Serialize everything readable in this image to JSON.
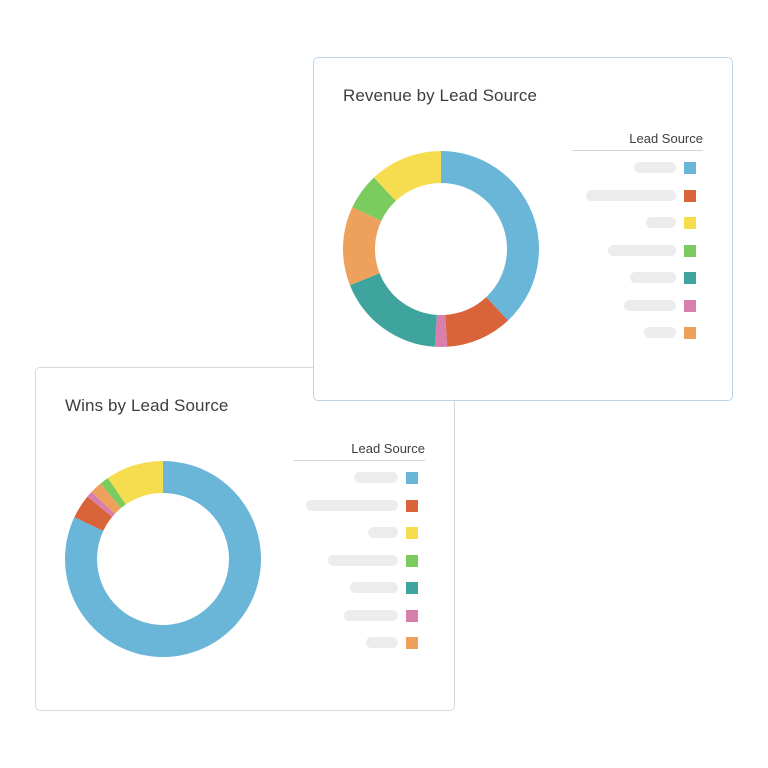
{
  "colors": {
    "blue": "#6ab6d9",
    "orange_red": "#d9643a",
    "yellow": "#f6dc4f",
    "green": "#7ccb5f",
    "teal": "#3fa49d",
    "pink": "#d97fae",
    "light_orange": "#eea15c"
  },
  "chart_data": [
    {
      "type": "pie",
      "title": "Revenue by Lead Source",
      "legend": {
        "title": "Lead Source",
        "placement": "right"
      },
      "series": [
        {
          "color": "#6ab6d9",
          "value": 38
        },
        {
          "color": "#d9643a",
          "value": 11
        },
        {
          "color": "#d97fae",
          "value": 2
        },
        {
          "color": "#3fa49d",
          "value": 18
        },
        {
          "color": "#eea15c",
          "value": 13
        },
        {
          "color": "#7ccb5f",
          "value": 6
        },
        {
          "color": "#f6dc4f",
          "value": 12
        }
      ],
      "legend_swatches": [
        "#6ab6d9",
        "#d9643a",
        "#f6dc4f",
        "#7ccb5f",
        "#3fa49d",
        "#d97fae",
        "#eea15c"
      ]
    },
    {
      "type": "pie",
      "title": "Wins by Lead Source",
      "legend": {
        "title": "Lead Source",
        "placement": "right"
      },
      "series": [
        {
          "color": "#6ab6d9",
          "value": 82
        },
        {
          "color": "#d9643a",
          "value": 4
        },
        {
          "color": "#d97fae",
          "value": 1
        },
        {
          "color": "#eea15c",
          "value": 2
        },
        {
          "color": "#7ccb5f",
          "value": 1.5
        },
        {
          "color": "#f6dc4f",
          "value": 9.5
        }
      ],
      "legend_swatches": [
        "#6ab6d9",
        "#d9643a",
        "#f6dc4f",
        "#7ccb5f",
        "#3fa49d",
        "#d97fae",
        "#eea15c"
      ]
    }
  ]
}
